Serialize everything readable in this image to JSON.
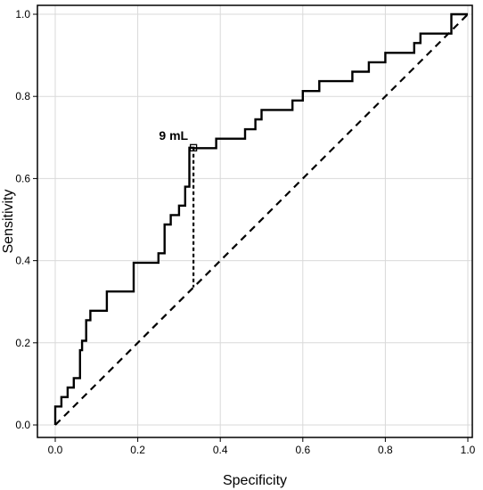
{
  "chart_data": {
    "type": "line",
    "title": "",
    "xlabel": "Specificity",
    "ylabel": "Sensitivity",
    "xlim": [
      0,
      1
    ],
    "ylim": [
      0,
      1
    ],
    "xticks": [
      "0.0",
      "0.2",
      "0.4",
      "0.6",
      "0.8",
      "1.0"
    ],
    "yticks": [
      "0.0",
      "0.2",
      "0.4",
      "0.6",
      "0.8",
      "1.0"
    ],
    "grid": true,
    "series": [
      {
        "style": "solid",
        "x": [
          0.0,
          0.0,
          0.015,
          0.015,
          0.03,
          0.03,
          0.045,
          0.045,
          0.06,
          0.06,
          0.065,
          0.065,
          0.075,
          0.075,
          0.085,
          0.085,
          0.125,
          0.125,
          0.19,
          0.19,
          0.25,
          0.25,
          0.265,
          0.265,
          0.28,
          0.28,
          0.3,
          0.3,
          0.315,
          0.315,
          0.325,
          0.325,
          0.335,
          0.335,
          0.345,
          0.345,
          0.39,
          0.39,
          0.46,
          0.46,
          0.485,
          0.485,
          0.5,
          0.5,
          0.575,
          0.575,
          0.6,
          0.6,
          0.64,
          0.64,
          0.72,
          0.72,
          0.76,
          0.76,
          0.8,
          0.8,
          0.84,
          0.84,
          0.87,
          0.87,
          0.885,
          0.885,
          0.96,
          0.96,
          1.0
        ],
        "y": [
          0.0,
          0.045,
          0.045,
          0.068,
          0.068,
          0.091,
          0.091,
          0.114,
          0.114,
          0.182,
          0.182,
          0.205,
          0.205,
          0.255,
          0.255,
          0.278,
          0.278,
          0.325,
          0.325,
          0.395,
          0.395,
          0.418,
          0.418,
          0.488,
          0.488,
          0.511,
          0.511,
          0.534,
          0.534,
          0.58,
          0.58,
          0.675,
          0.675,
          0.674,
          0.674,
          0.674,
          0.674,
          0.697,
          0.697,
          0.72,
          0.72,
          0.744,
          0.744,
          0.767,
          0.767,
          0.79,
          0.79,
          0.813,
          0.813,
          0.837,
          0.837,
          0.86,
          0.86,
          0.883,
          0.883,
          0.906,
          0.906,
          0.906,
          0.906,
          0.93,
          0.93,
          0.953,
          0.953,
          1.0,
          1.0
        ]
      },
      {
        "style": "dashed",
        "x": [
          0.0,
          1.0
        ],
        "y": [
          0.0,
          1.0
        ]
      },
      {
        "style": "dashed",
        "x": [
          0.335,
          0.335
        ],
        "y": [
          0.675,
          0.335
        ]
      }
    ],
    "annotations": [
      {
        "text": "9 mL",
        "x": 0.335,
        "y": 0.675
      }
    ]
  }
}
